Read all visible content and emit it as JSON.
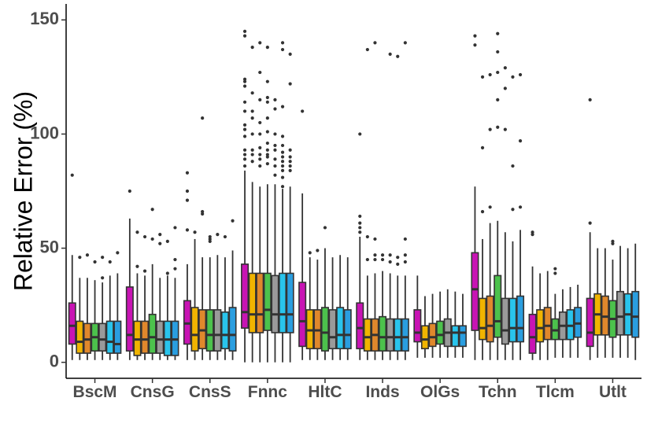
{
  "chart_data": {
    "type": "boxplot",
    "title": "",
    "xlabel": "",
    "ylabel": "Relative Error (%)",
    "ylim": [
      -7,
      157
    ],
    "yticks": [
      0,
      50,
      100,
      150
    ],
    "ytick_labels": [
      "0",
      "50",
      "100",
      "150"
    ],
    "grid": false,
    "legend": "none",
    "series_colors": [
      "#c814b4",
      "#f0b400",
      "#e0882c",
      "#4cc24c",
      "#9a9a9a",
      "#29c4ec",
      "#2a9ee0"
    ],
    "categories": [
      "BscM",
      "CnsG",
      "CnsS",
      "Fnnc",
      "HltC",
      "Inds",
      "OlGs",
      "Tchn",
      "Tlcm",
      "Utlt"
    ],
    "groups": [
      {
        "category": "BscM",
        "boxes": [
          {
            "q1": 8,
            "median": 16,
            "q3": 26,
            "lo": 1,
            "hi": 47,
            "outliers": [
              82
            ]
          },
          {
            "q1": 4,
            "median": 9,
            "q3": 18,
            "lo": 1,
            "hi": 37,
            "outliers": [
              46
            ]
          },
          {
            "q1": 4,
            "median": 10,
            "q3": 17,
            "lo": 1,
            "hi": 37,
            "outliers": [
              47
            ]
          },
          {
            "q1": 5,
            "median": 11,
            "q3": 17,
            "lo": 1,
            "hi": 36,
            "outliers": [
              44
            ]
          },
          {
            "q1": 5,
            "median": 10,
            "q3": 17,
            "lo": 1,
            "hi": 35,
            "outliers": [
              46,
              37
            ]
          },
          {
            "q1": 4,
            "median": 9,
            "q3": 18,
            "lo": 1,
            "hi": 38,
            "outliers": [
              44
            ]
          },
          {
            "q1": 4,
            "median": 8,
            "q3": 18,
            "lo": 1,
            "hi": 39,
            "outliers": [
              48
            ]
          }
        ]
      },
      {
        "category": "CnsG",
        "boxes": [
          {
            "q1": 5,
            "median": 12,
            "q3": 33,
            "lo": 1,
            "hi": 63,
            "outliers": [
              75
            ]
          },
          {
            "q1": 3,
            "median": 10,
            "q3": 18,
            "lo": 1,
            "hi": 39,
            "outliers": [
              57,
              42
            ]
          },
          {
            "q1": 4,
            "median": 10,
            "q3": 18,
            "lo": 1,
            "hi": 38,
            "outliers": [
              55,
              40
            ]
          },
          {
            "q1": 4,
            "median": 11,
            "q3": 21,
            "lo": 1,
            "hi": 43,
            "outliers": [
              67,
              54
            ]
          },
          {
            "q1": 4,
            "median": 10,
            "q3": 18,
            "lo": 1,
            "hi": 37,
            "outliers": [
              56,
              52
            ]
          },
          {
            "q1": 3,
            "median": 10,
            "q3": 18,
            "lo": 1,
            "hi": 38,
            "outliers": [
              53,
              39
            ]
          },
          {
            "q1": 3,
            "median": 10,
            "q3": 18,
            "lo": 1,
            "hi": 37,
            "outliers": [
              59,
              45,
              41
            ]
          }
        ]
      },
      {
        "category": "CnsS",
        "boxes": [
          {
            "q1": 8,
            "median": 17,
            "q3": 27,
            "lo": 1,
            "hi": 43,
            "outliers": [
              83,
              75,
              71,
              58
            ]
          },
          {
            "q1": 5,
            "median": 12,
            "q3": 24,
            "lo": 1,
            "hi": 54,
            "outliers": [
              57
            ]
          },
          {
            "q1": 6,
            "median": 14,
            "q3": 23,
            "lo": 1,
            "hi": 46,
            "outliers": [
              107,
              66,
              65
            ]
          },
          {
            "q1": 5,
            "median": 12,
            "q3": 23,
            "lo": 1,
            "hi": 46,
            "outliers": [
              53,
              55,
              54
            ]
          },
          {
            "q1": 5,
            "median": 12,
            "q3": 23,
            "lo": 1,
            "hi": 47,
            "outliers": [
              56
            ]
          },
          {
            "q1": 6,
            "median": 12,
            "q3": 22,
            "lo": 1,
            "hi": 46,
            "outliers": [
              55
            ]
          },
          {
            "q1": 5,
            "median": 12,
            "q3": 24,
            "lo": 1,
            "hi": 49,
            "outliers": [
              62
            ]
          }
        ]
      },
      {
        "category": "Fnnc",
        "boxes": [
          {
            "q1": 15,
            "median": 22,
            "q3": 43,
            "lo": 0,
            "hi": 84,
            "outliers": [
              145,
              143,
              124,
              123,
              121,
              114,
              110,
              104,
              102,
              99,
              93,
              91,
              89,
              86
            ]
          },
          {
            "q1": 13,
            "median": 21,
            "q3": 39,
            "lo": 0,
            "hi": 79,
            "outliers": [
              138,
              118,
              110,
              107,
              100,
              93,
              91,
              88
            ]
          },
          {
            "q1": 13,
            "median": 21,
            "q3": 39,
            "lo": 0,
            "hi": 77,
            "outliers": [
              140,
              127,
              115,
              105,
              100,
              94,
              91,
              89,
              86
            ]
          },
          {
            "q1": 14,
            "median": 23,
            "q3": 39,
            "lo": 0,
            "hi": 78,
            "outliers": [
              138,
              123,
              116,
              114,
              107,
              101,
              96,
              93,
              91,
              90,
              87
            ]
          },
          {
            "q1": 13,
            "median": 21,
            "q3": 38,
            "lo": 0,
            "hi": 78,
            "outliers": [
              115,
              111,
              100,
              95,
              93,
              89,
              86,
              82
            ]
          },
          {
            "q1": 13,
            "median": 21,
            "q3": 39,
            "lo": 0,
            "hi": 76,
            "outliers": [
              137,
              140,
              112,
              99,
              95,
              92,
              90,
              88,
              86,
              84,
              81,
              77
            ]
          },
          {
            "q1": 13,
            "median": 21,
            "q3": 39,
            "lo": 0,
            "hi": 77,
            "outliers": [
              135,
              122,
              93,
              90,
              88,
              86,
              84
            ]
          }
        ]
      },
      {
        "category": "HltC",
        "boxes": [
          {
            "q1": 7,
            "median": 18,
            "q3": 35,
            "lo": 1,
            "hi": 74,
            "outliers": [
              110
            ]
          },
          {
            "q1": 6,
            "median": 14,
            "q3": 23,
            "lo": 1,
            "hi": 46,
            "outliers": [
              48
            ]
          },
          {
            "q1": 6,
            "median": 14,
            "q3": 23,
            "lo": 1,
            "hi": 45,
            "outliers": [
              49
            ]
          },
          {
            "q1": 5,
            "median": 13,
            "q3": 24,
            "lo": 1,
            "hi": 50,
            "outliers": [
              59
            ]
          },
          {
            "q1": 6,
            "median": 11,
            "q3": 23,
            "lo": 1,
            "hi": 46,
            "outliers": []
          },
          {
            "q1": 6,
            "median": 12,
            "q3": 24,
            "lo": 1,
            "hi": 47,
            "outliers": []
          },
          {
            "q1": 6,
            "median": 12,
            "q3": 23,
            "lo": 1,
            "hi": 46,
            "outliers": []
          }
        ]
      },
      {
        "category": "Inds",
        "boxes": [
          {
            "q1": 6,
            "median": 15,
            "q3": 26,
            "lo": 1,
            "hi": 55,
            "outliers": [
              100,
              64,
              61,
              59,
              57
            ]
          },
          {
            "q1": 5,
            "median": 11,
            "q3": 19,
            "lo": 1,
            "hi": 38,
            "outliers": [
              137,
              55,
              45
            ]
          },
          {
            "q1": 5,
            "median": 12,
            "q3": 19,
            "lo": 1,
            "hi": 39,
            "outliers": [
              140,
              54,
              47,
              45
            ]
          },
          {
            "q1": 5,
            "median": 11,
            "q3": 20,
            "lo": 1,
            "hi": 40,
            "outliers": [
              47,
              45
            ]
          },
          {
            "q1": 5,
            "median": 11,
            "q3": 19,
            "lo": 1,
            "hi": 39,
            "outliers": [
              135,
              47,
              44
            ]
          },
          {
            "q1": 5,
            "median": 11,
            "q3": 19,
            "lo": 1,
            "hi": 38,
            "outliers": [
              134,
              46,
              43
            ]
          },
          {
            "q1": 5,
            "median": 11,
            "q3": 19,
            "lo": 1,
            "hi": 38,
            "outliers": [
              140,
              54,
              47,
              44
            ]
          }
        ]
      },
      {
        "category": "OlGs",
        "boxes": [
          {
            "q1": 9,
            "median": 13,
            "q3": 23,
            "lo": 2,
            "hi": 38,
            "outliers": []
          },
          {
            "q1": 6,
            "median": 10,
            "q3": 16,
            "lo": 2,
            "hi": 29,
            "outliers": []
          },
          {
            "q1": 7,
            "median": 11,
            "q3": 17,
            "lo": 2,
            "hi": 30,
            "outliers": []
          },
          {
            "q1": 8,
            "median": 12,
            "q3": 18,
            "lo": 2,
            "hi": 31,
            "outliers": []
          },
          {
            "q1": 7,
            "median": 13,
            "q3": 19,
            "lo": 2,
            "hi": 32,
            "outliers": []
          },
          {
            "q1": 7,
            "median": 13,
            "q3": 16,
            "lo": 2,
            "hi": 31,
            "outliers": []
          },
          {
            "q1": 7,
            "median": 13,
            "q3": 16,
            "lo": 2,
            "hi": 30,
            "outliers": []
          }
        ]
      },
      {
        "category": "Tchn",
        "boxes": [
          {
            "q1": 14,
            "median": 32,
            "q3": 48,
            "lo": 1,
            "hi": 77,
            "outliers": [
              143,
              139
            ]
          },
          {
            "q1": 10,
            "median": 15,
            "q3": 28,
            "lo": 1,
            "hi": 54,
            "outliers": [
              125,
              94,
              66
            ]
          },
          {
            "q1": 9,
            "median": 16,
            "q3": 29,
            "lo": 1,
            "hi": 61,
            "outliers": [
              126,
              102,
              68
            ]
          },
          {
            "q1": 11,
            "median": 18,
            "q3": 38,
            "lo": 1,
            "hi": 62,
            "outliers": [
              144,
              136,
              127,
              115,
              103
            ]
          },
          {
            "q1": 8,
            "median": 14,
            "q3": 28,
            "lo": 1,
            "hi": 57,
            "outliers": [
              129,
              120,
              102
            ]
          },
          {
            "q1": 9,
            "median": 15,
            "q3": 28,
            "lo": 1,
            "hi": 53,
            "outliers": [
              125,
              86,
              67
            ]
          },
          {
            "q1": 9,
            "median": 15,
            "q3": 29,
            "lo": 1,
            "hi": 58,
            "outliers": [
              126,
              97,
              68
            ]
          }
        ]
      },
      {
        "category": "Tlcm",
        "boxes": [
          {
            "q1": 4,
            "median": 11,
            "q3": 21,
            "lo": 1,
            "hi": 42,
            "outliers": [
              57,
              56
            ]
          },
          {
            "q1": 9,
            "median": 15,
            "q3": 23,
            "lo": 1,
            "hi": 39,
            "outliers": []
          },
          {
            "q1": 10,
            "median": 16,
            "q3": 24,
            "lo": 1,
            "hi": 40,
            "outliers": []
          },
          {
            "q1": 10,
            "median": 14,
            "q3": 19,
            "lo": 2,
            "hi": 30,
            "outliers": [
              41,
              39
            ]
          },
          {
            "q1": 10,
            "median": 16,
            "q3": 22,
            "lo": 2,
            "hi": 32,
            "outliers": []
          },
          {
            "q1": 10,
            "median": 16,
            "q3": 23,
            "lo": 2,
            "hi": 33,
            "outliers": []
          },
          {
            "q1": 11,
            "median": 17,
            "q3": 24,
            "lo": 2,
            "hi": 34,
            "outliers": []
          }
        ]
      },
      {
        "category": "Utlt",
        "boxes": [
          {
            "q1": 7,
            "median": 13,
            "q3": 28,
            "lo": 1,
            "hi": 57,
            "outliers": [
              115,
              61
            ]
          },
          {
            "q1": 12,
            "median": 21,
            "q3": 30,
            "lo": 2,
            "hi": 50,
            "outliers": []
          },
          {
            "q1": 12,
            "median": 20,
            "q3": 29,
            "lo": 2,
            "hi": 50,
            "outliers": []
          },
          {
            "q1": 11,
            "median": 19,
            "q3": 27,
            "lo": 2,
            "hi": 45,
            "outliers": [
              53,
              52
            ]
          },
          {
            "q1": 12,
            "median": 20,
            "q3": 31,
            "lo": 2,
            "hi": 51,
            "outliers": []
          },
          {
            "q1": 12,
            "median": 21,
            "q3": 30,
            "lo": 2,
            "hi": 50,
            "outliers": []
          },
          {
            "q1": 11,
            "median": 20,
            "q3": 31,
            "lo": 1,
            "hi": 52,
            "outliers": []
          }
        ]
      }
    ]
  }
}
